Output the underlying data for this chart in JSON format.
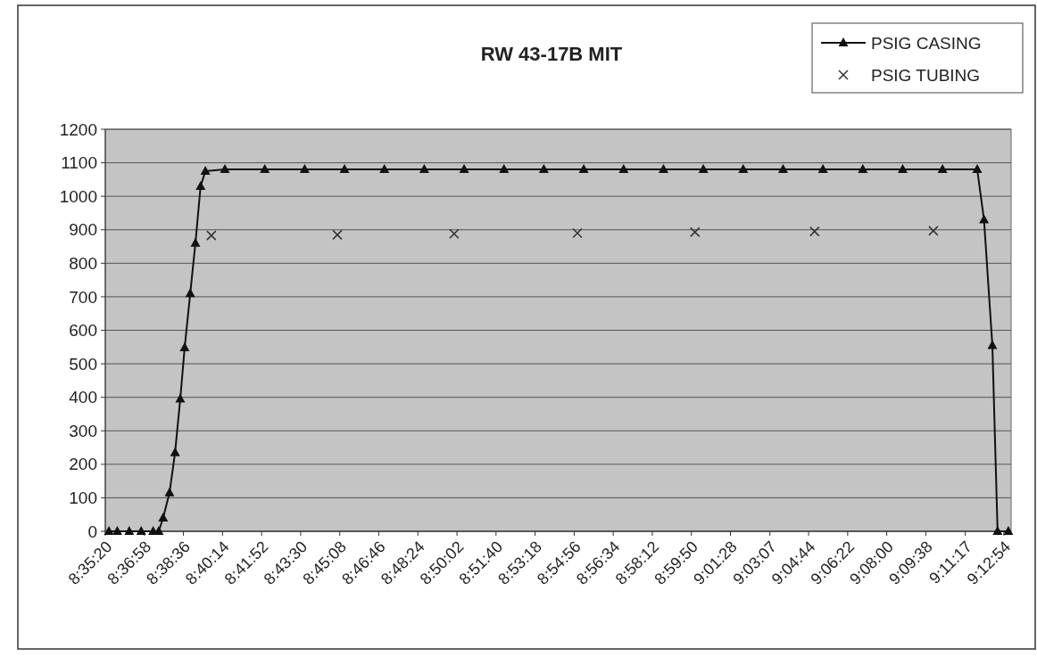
{
  "chart_data": {
    "type": "line",
    "title": "RW 43-17B MIT",
    "xlim": [
      8.58889,
      9.22
    ],
    "xticks": [
      {
        "value": 8.58889,
        "label": "8:35:20"
      },
      {
        "value": 8.61611,
        "label": "8:36:58"
      },
      {
        "value": 8.64333,
        "label": "8:38:36"
      },
      {
        "value": 8.67056,
        "label": "8:40:14"
      },
      {
        "value": 8.69778,
        "label": "8:41:52"
      },
      {
        "value": 8.725,
        "label": "8:43:30"
      },
      {
        "value": 8.75222,
        "label": "8:45:08"
      },
      {
        "value": 8.77944,
        "label": "8:46:46"
      },
      {
        "value": 8.80667,
        "label": "8:48:24"
      },
      {
        "value": 8.83389,
        "label": "8:50:02"
      },
      {
        "value": 8.86111,
        "label": "8:51:40"
      },
      {
        "value": 8.88833,
        "label": "8:53:18"
      },
      {
        "value": 8.91556,
        "label": "8:54:56"
      },
      {
        "value": 8.94278,
        "label": "8:56:34"
      },
      {
        "value": 8.97,
        "label": "8:58:12"
      },
      {
        "value": 8.99722,
        "label": "8:59:50"
      },
      {
        "value": 9.02444,
        "label": "9:01:28"
      },
      {
        "value": 9.05194,
        "label": "9:03:07"
      },
      {
        "value": 9.07889,
        "label": "9:04:44"
      },
      {
        "value": 9.10611,
        "label": "9:06:22"
      },
      {
        "value": 9.13333,
        "label": "9:08:00"
      },
      {
        "value": 9.16056,
        "label": "9:09:38"
      },
      {
        "value": 9.18806,
        "label": "9:11:17"
      },
      {
        "value": 9.215,
        "label": "9:12:54"
      }
    ],
    "ylim": [
      0,
      1200
    ],
    "yticks": [
      0,
      100,
      200,
      300,
      400,
      500,
      600,
      700,
      800,
      900,
      1000,
      1100,
      1200
    ],
    "grid": "y",
    "legend": "top right",
    "series": [
      {
        "name": "PSIG CASING",
        "marker": "triangle",
        "color": "#111111",
        "x": [
          8.59139,
          8.59722,
          8.60556,
          8.61389,
          8.62222,
          8.62611,
          8.62917,
          8.63361,
          8.6375,
          8.64111,
          8.64417,
          8.64806,
          8.65167,
          8.65528,
          8.65861,
          8.67222,
          8.7,
          8.72778,
          8.75556,
          8.78333,
          8.81111,
          8.83889,
          8.86667,
          8.89444,
          8.92222,
          8.95,
          8.97778,
          9.00556,
          9.03333,
          9.06111,
          9.08889,
          9.11667,
          9.14444,
          9.17222,
          9.19639,
          9.20111,
          9.20694,
          9.21056,
          9.21806
        ],
        "values": [
          0,
          0,
          0,
          0,
          0,
          0,
          40,
          115,
          235,
          395,
          548,
          710,
          860,
          1030,
          1075,
          1080,
          1080,
          1080,
          1080,
          1080,
          1080,
          1080,
          1080,
          1080,
          1080,
          1080,
          1080,
          1080,
          1080,
          1080,
          1080,
          1080,
          1080,
          1080,
          1080,
          930,
          555,
          0,
          0
        ]
      },
      {
        "name": "PSIG TUBING",
        "type": "scatter",
        "marker": "cross",
        "color": "#333333",
        "x": [
          8.66278,
          8.75056,
          8.83194,
          8.91778,
          8.99972,
          9.08306,
          9.16583
        ],
        "values": [
          883,
          885,
          888,
          890,
          893,
          895,
          897
        ]
      }
    ]
  }
}
